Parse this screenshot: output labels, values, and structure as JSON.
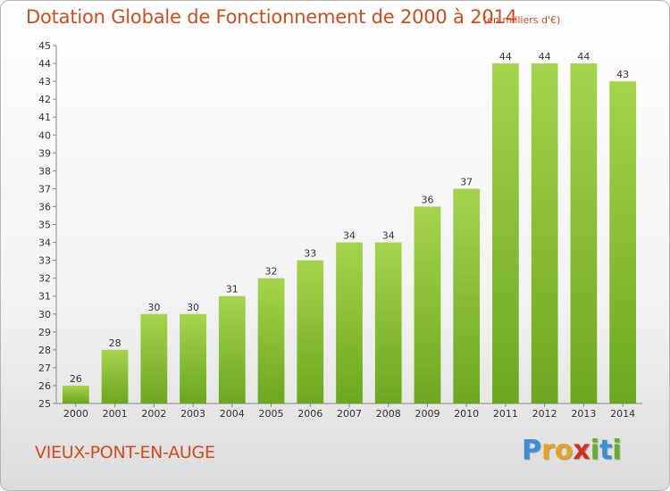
{
  "header": {
    "title": "Dotation Globale de Fonctionnement de 2000 à 2014",
    "subtitle": "(en milliers d'€)"
  },
  "footer": {
    "commune": "VIEUX-PONT-EN-AUGE",
    "brand_letters": [
      "P",
      "r",
      "o",
      "x",
      "i",
      "t",
      "i"
    ],
    "brand_colors": [
      "#3d8ed6",
      "#e7a31a",
      "#e7a31a",
      "#d6301f",
      "#67ae2a",
      "#3d8ed6",
      "#67ae2a"
    ]
  },
  "chart_data": {
    "type": "bar",
    "title": "Dotation Globale de Fonctionnement de 2000 à 2014",
    "subtitle": "(en milliers d'€)",
    "categories": [
      "2000",
      "2001",
      "2002",
      "2003",
      "2004",
      "2005",
      "2006",
      "2007",
      "2008",
      "2009",
      "2010",
      "2011",
      "2012",
      "2013",
      "2014"
    ],
    "values": [
      26,
      28,
      30,
      30,
      31,
      32,
      33,
      34,
      34,
      36,
      37,
      44,
      44,
      44,
      43
    ],
    "ylim": [
      25,
      45
    ],
    "yticks": [
      25,
      26,
      27,
      28,
      29,
      30,
      31,
      32,
      33,
      34,
      35,
      36,
      37,
      38,
      39,
      40,
      41,
      42,
      43,
      44,
      45
    ],
    "xlabel": "",
    "ylabel": "",
    "grid": false,
    "bar_color_light": "#a6d34c",
    "bar_color_dark": "#6da71f"
  }
}
